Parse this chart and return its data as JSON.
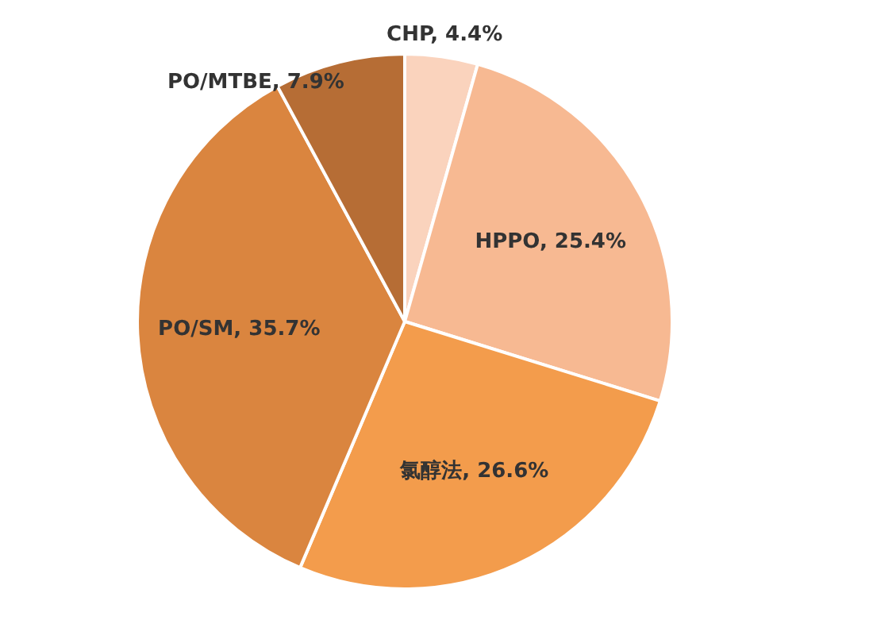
{
  "chart_data": {
    "type": "pie",
    "categories": [
      "CHP",
      "HPPO",
      "氯醇法",
      "PO/SM",
      "PO/MTBE"
    ],
    "values": [
      4.4,
      25.4,
      26.6,
      35.7,
      7.9
    ],
    "value_labels": [
      "4.4%",
      "25.4%",
      "26.6%",
      "35.7%",
      "7.9%"
    ],
    "colors": [
      "#fad3bd",
      "#f7b992",
      "#f39c4c",
      "#da853f",
      "#b66d35"
    ],
    "legend": false
  }
}
